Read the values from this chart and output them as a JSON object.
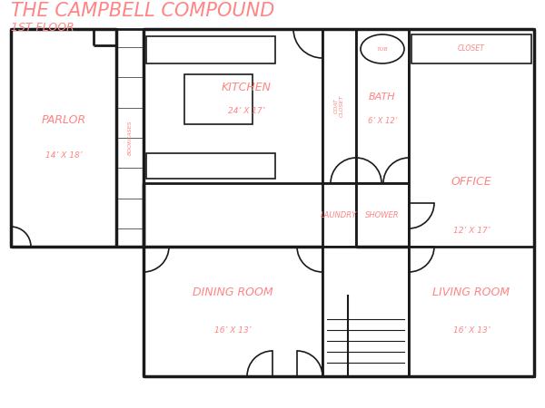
{
  "title": "THE CAMPBELL COMPOUND",
  "subtitle": "1ST FLOOR",
  "text_color": "#FF8585",
  "wall_color": "#1a1a1a",
  "bg_color": "#FFFFFF",
  "rooms": {
    "parlor": {
      "label": "PARLOR",
      "dim": "14’ X 18’"
    },
    "kitchen": {
      "label": "KITCHEN",
      "dim": "24’ X 17’"
    },
    "bath": {
      "label": "BATH",
      "dim": "6’ X 12’"
    },
    "office": {
      "label": "OFFICE",
      "dim": "12’ X 17’"
    },
    "laundry": {
      "label": "LAUNDRY",
      "dim": ""
    },
    "shower": {
      "label": "SHOWER",
      "dim": ""
    },
    "dining": {
      "label": "DINING ROOM",
      "dim": "16’ X 13’"
    },
    "living": {
      "label": "LIVING ROOM",
      "dim": "16’ X 13’"
    },
    "coat": {
      "label": "COAT\nCLOSET",
      "dim": ""
    },
    "tub": {
      "label": "TUB",
      "dim": ""
    },
    "closet": {
      "label": "CLOSET",
      "dim": ""
    }
  }
}
